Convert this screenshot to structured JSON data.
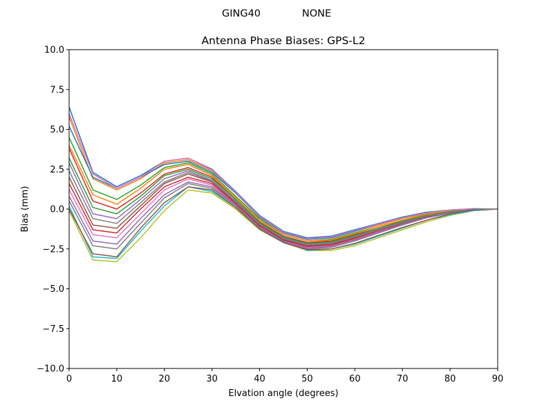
{
  "figure": {
    "suptitle_left": "GING40",
    "suptitle_right": "NONE"
  },
  "chart_data": {
    "type": "line",
    "title": "Antenna Phase Biases: GPS-L2",
    "xlabel": "Elvation angle (degrees)",
    "ylabel": "Bias (mm)",
    "xlim": [
      0,
      90
    ],
    "ylim": [
      -10,
      10
    ],
    "xticks": [
      0,
      10,
      20,
      30,
      40,
      50,
      60,
      70,
      80,
      90
    ],
    "yticks": [
      -10.0,
      -7.5,
      -5.0,
      -2.5,
      0.0,
      2.5,
      5.0,
      7.5,
      10.0
    ],
    "xtick_labels": [
      "0",
      "10",
      "20",
      "30",
      "40",
      "50",
      "60",
      "70",
      "80",
      "90"
    ],
    "ytick_labels": [
      "−10.0",
      "−7.5",
      "−5.0",
      "−2.5",
      "0.0",
      "2.5",
      "5.0",
      "7.5",
      "10.0"
    ],
    "grid": false,
    "legend": "none",
    "color_cycle": [
      "#1f77b4",
      "#ff7f0e",
      "#2ca02c",
      "#d62728",
      "#9467bd",
      "#8c564b",
      "#e377c2",
      "#7f7f7f",
      "#bcbd22",
      "#17becf"
    ],
    "x": [
      0,
      5,
      10,
      15,
      20,
      25,
      30,
      35,
      40,
      45,
      50,
      55,
      60,
      65,
      70,
      75,
      80,
      85,
      90
    ],
    "series": [
      {
        "values": [
          6.4,
          2.3,
          1.4,
          2.1,
          3.0,
          3.2,
          2.5,
          1.1,
          -0.4,
          -1.4,
          -1.8,
          -1.7,
          -1.3,
          -0.9,
          -0.5,
          -0.2,
          -0.05,
          0.02,
          0.0
        ]
      },
      {
        "values": [
          5.8,
          1.9,
          1.2,
          1.9,
          2.9,
          3.1,
          2.4,
          1.0,
          -0.5,
          -1.5,
          -1.9,
          -1.8,
          -1.4,
          -1.0,
          -0.6,
          -0.3,
          -0.1,
          0.0,
          0.0
        ]
      },
      {
        "values": [
          4.5,
          1.2,
          0.6,
          1.5,
          2.6,
          2.9,
          2.2,
          0.8,
          -0.6,
          -1.6,
          -2.0,
          -1.9,
          -1.5,
          -1.1,
          -0.7,
          -0.35,
          -0.1,
          0.0,
          0.0
        ]
      },
      {
        "values": [
          3.8,
          0.5,
          0.0,
          1.0,
          2.2,
          2.6,
          2.0,
          0.6,
          -0.8,
          -1.7,
          -2.1,
          -2.0,
          -1.6,
          -1.2,
          -0.75,
          -0.4,
          -0.15,
          0.0,
          0.0
        ]
      },
      {
        "values": [
          2.9,
          -0.3,
          -0.6,
          0.6,
          1.9,
          2.4,
          1.8,
          0.5,
          -0.9,
          -1.8,
          -2.2,
          -2.1,
          -1.7,
          -1.25,
          -0.8,
          -0.45,
          -0.15,
          0.0,
          0.0
        ]
      },
      {
        "values": [
          2.0,
          -1.0,
          -1.2,
          0.2,
          1.6,
          2.2,
          1.7,
          0.4,
          -1.0,
          -1.9,
          -2.3,
          -2.2,
          -1.8,
          -1.3,
          -0.85,
          -0.5,
          -0.2,
          0.0,
          0.0
        ]
      },
      {
        "values": [
          1.2,
          -1.6,
          -1.8,
          -0.3,
          1.2,
          1.9,
          1.5,
          0.3,
          -1.1,
          -2.0,
          -2.4,
          -2.3,
          -1.9,
          -1.4,
          -0.9,
          -0.5,
          -0.2,
          0.0,
          0.0
        ]
      },
      {
        "values": [
          0.5,
          -2.3,
          -2.5,
          -0.9,
          0.7,
          1.6,
          1.3,
          0.2,
          -1.2,
          -2.1,
          -2.5,
          -2.4,
          -2.0,
          -1.5,
          -1.0,
          -0.55,
          -0.25,
          0.0,
          0.0
        ]
      },
      {
        "values": [
          -0.1,
          -3.2,
          -3.3,
          -1.8,
          -0.1,
          1.2,
          1.0,
          0.0,
          -1.3,
          -2.1,
          -2.6,
          -2.6,
          -2.3,
          -1.8,
          -1.3,
          -0.8,
          -0.4,
          -0.1,
          0.0
        ]
      },
      {
        "values": [
          0.2,
          -3.0,
          -3.1,
          -1.4,
          0.2,
          1.4,
          1.1,
          0.1,
          -1.2,
          -2.0,
          -2.6,
          -2.5,
          -2.2,
          -1.7,
          -1.2,
          -0.7,
          -0.35,
          -0.1,
          0.0
        ]
      },
      {
        "values": [
          5.2,
          2.0,
          1.3,
          2.0,
          2.8,
          3.0,
          2.3,
          1.0,
          -0.5,
          -1.5,
          -1.9,
          -1.8,
          -1.4,
          -0.95,
          -0.55,
          -0.25,
          -0.05,
          0.02,
          0.0
        ]
      },
      {
        "values": [
          4.0,
          0.9,
          0.3,
          1.3,
          2.5,
          2.8,
          2.1,
          0.7,
          -0.7,
          -1.6,
          -2.0,
          -1.95,
          -1.55,
          -1.1,
          -0.7,
          -0.35,
          -0.1,
          0.0,
          0.0
        ]
      },
      {
        "values": [
          3.2,
          0.1,
          -0.3,
          0.8,
          2.1,
          2.5,
          1.9,
          0.6,
          -0.85,
          -1.75,
          -2.15,
          -2.05,
          -1.65,
          -1.2,
          -0.75,
          -0.4,
          -0.15,
          0.0,
          0.0
        ]
      },
      {
        "values": [
          1.6,
          -1.3,
          -1.5,
          0.0,
          1.4,
          2.0,
          1.6,
          0.35,
          -1.05,
          -1.95,
          -2.35,
          -2.25,
          -1.85,
          -1.35,
          -0.9,
          -0.5,
          -0.2,
          0.0,
          0.0
        ]
      },
      {
        "values": [
          0.8,
          -2.0,
          -2.2,
          -0.6,
          0.9,
          1.7,
          1.4,
          0.25,
          -1.15,
          -2.05,
          -2.45,
          -2.35,
          -1.95,
          -1.45,
          -0.95,
          -0.55,
          -0.25,
          0.0,
          0.0
        ]
      },
      {
        "values": [
          0.0,
          -2.8,
          -3.0,
          -1.2,
          0.4,
          1.4,
          1.2,
          0.1,
          -1.25,
          -2.1,
          -2.55,
          -2.5,
          -2.15,
          -1.65,
          -1.15,
          -0.7,
          -0.3,
          -0.05,
          0.0
        ]
      },
      {
        "values": [
          6.0,
          2.2,
          1.3,
          2.0,
          3.0,
          3.2,
          2.45,
          1.05,
          -0.45,
          -1.45,
          -1.85,
          -1.75,
          -1.35,
          -0.95,
          -0.55,
          -0.25,
          -0.05,
          0.01,
          0.0
        ]
      },
      {
        "values": [
          2.4,
          -0.6,
          -0.9,
          0.4,
          1.7,
          2.3,
          1.75,
          0.45,
          -0.95,
          -1.85,
          -2.25,
          -2.15,
          -1.75,
          -1.3,
          -0.85,
          -0.45,
          -0.2,
          0.0,
          0.0
        ]
      }
    ]
  }
}
